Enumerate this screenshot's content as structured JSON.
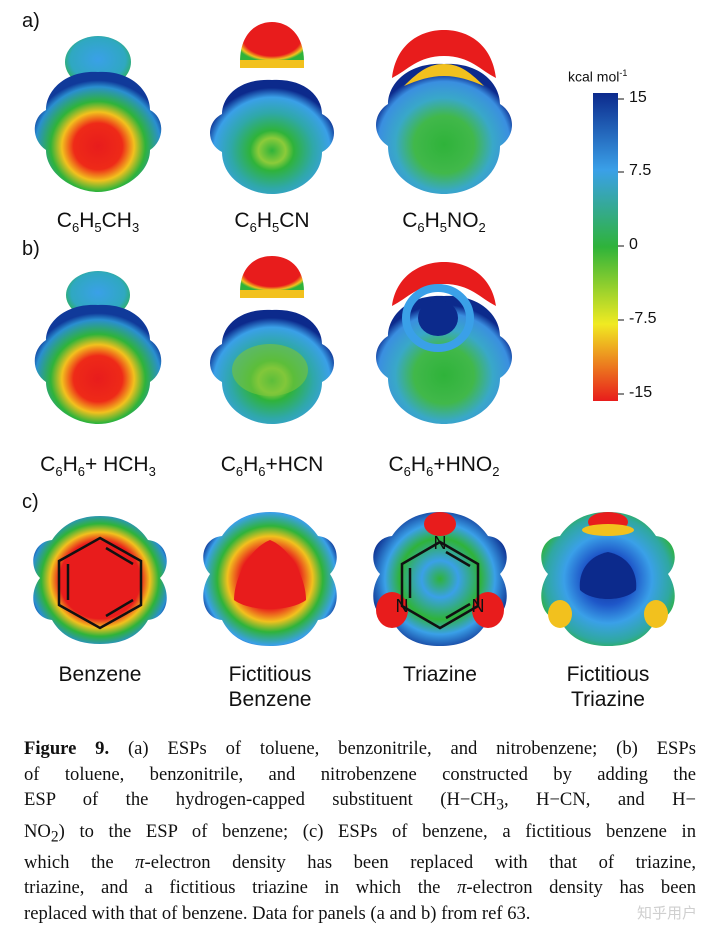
{
  "figure": {
    "panels": {
      "a": {
        "label": "a)",
        "molecules": [
          {
            "formula_html": "C<sub>6</sub>H<sub>5</sub>CH<sub>3</sub>"
          },
          {
            "formula_html": "C<sub>6</sub>H<sub>5</sub>CN"
          },
          {
            "formula_html": "C<sub>6</sub>H<sub>5</sub>NO<sub>2</sub>"
          }
        ]
      },
      "b": {
        "label": "b)",
        "molecules": [
          {
            "formula_html": "C<sub>6</sub>H<sub>6</sub>+ HCH<sub>3</sub>"
          },
          {
            "formula_html": "C<sub>6</sub>H<sub>6</sub>+HCN"
          },
          {
            "formula_html": "C<sub>6</sub>H<sub>6</sub>+HNO<sub>2</sub>"
          }
        ]
      },
      "c": {
        "label": "c)",
        "molecules": [
          {
            "name_line1": "Benzene",
            "name_line2": ""
          },
          {
            "name_line1": "Fictitious",
            "name_line2": "Benzene"
          },
          {
            "name_line1": "Triazine",
            "name_line2": ""
          },
          {
            "name_line1": "Fictitious",
            "name_line2": "Triazine"
          }
        ],
        "triazine_atom": "N"
      }
    },
    "color_scale": {
      "unit_html": "kcal mol<sup>-1</sup>",
      "ticks": [
        "15",
        "7.5",
        "0",
        "-7.5",
        "-15"
      ],
      "colors": [
        "#0c2a8c",
        "#3aa0e8",
        "#2fb33a",
        "#f0ea22",
        "#e81c1c"
      ]
    }
  },
  "caption": {
    "label": "Figure 9.",
    "lines_html": [
      " (a) ESPs of toluene, benzonitrile, and nitrobenzene; (b) ESPs",
      "of toluene, benzonitrile, and nitrobenzene constructed by adding the",
      "ESP of the hydrogen-capped substituent (H−CH<sub>3</sub>, H−CN, and H−",
      "NO<sub>2</sub>) to the ESP of benzene; (c) ESPs of benzene, a fictitious benzene in",
      "which the <i>π</i>-electron density has been replaced with that of triazine,",
      "triazine, and a fictitious triazine in which the <i>π</i>-electron density has been",
      "replaced with that of benzene. Data for panels (a and b) from ref 63."
    ]
  },
  "watermark": "知乎用户"
}
